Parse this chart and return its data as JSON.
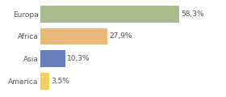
{
  "categories": [
    "Europa",
    "Africa",
    "Asia",
    "America"
  ],
  "values": [
    58.3,
    27.9,
    10.3,
    3.5
  ],
  "labels": [
    "58,3%",
    "27,9%",
    "10,3%",
    "3,5%"
  ],
  "bar_colors": [
    "#a8bb8a",
    "#e9b97a",
    "#6b7fba",
    "#f0d060"
  ],
  "background_color": "#ffffff",
  "xlim": [
    0,
    75
  ],
  "bar_height": 0.75,
  "label_fontsize": 6.5,
  "category_fontsize": 6.5,
  "grid_color": "#cccccc",
  "text_color": "#555555"
}
